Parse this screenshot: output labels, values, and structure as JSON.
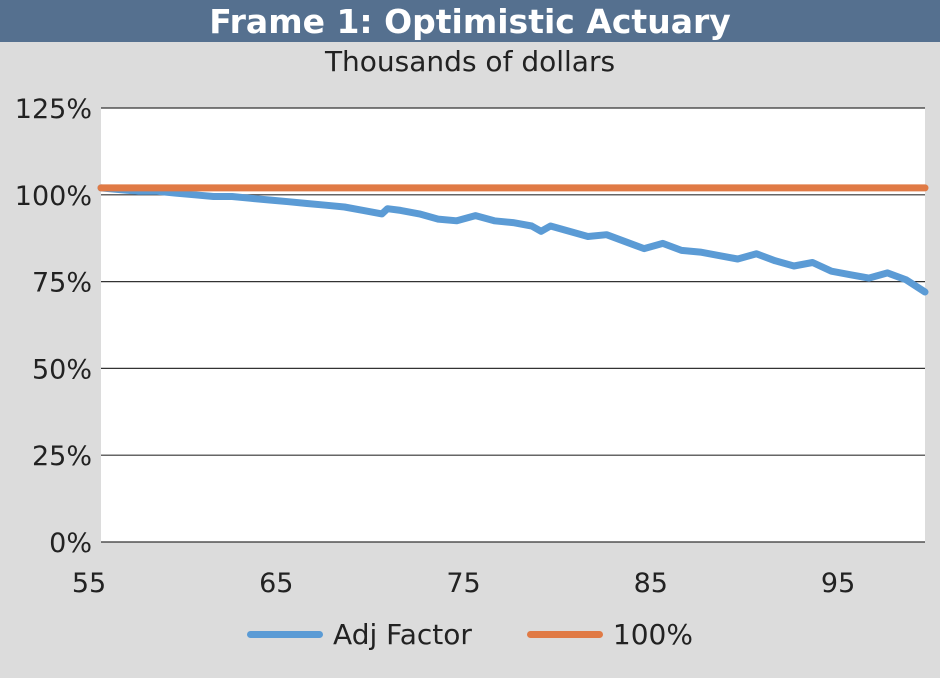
{
  "header": {
    "title": "Frame 1: Optimistic Actuary"
  },
  "chart_data": {
    "type": "line",
    "title": "Frame 1: Optimistic Actuary",
    "subtitle": "Thousands of dollars",
    "xlabel": "",
    "ylabel": "",
    "xlim": [
      55,
      99
    ],
    "ylim": [
      0,
      1.25
    ],
    "x_ticks": [
      55,
      65,
      75,
      85,
      95
    ],
    "x_tick_labels": [
      "55",
      "65",
      "75",
      "85",
      "95"
    ],
    "y_ticks": [
      0,
      0.25,
      0.5,
      0.75,
      1.0,
      1.25
    ],
    "y_tick_labels": [
      "0%",
      "25%",
      "50%",
      "75%",
      "100%",
      "125%"
    ],
    "grid": "horizontal",
    "legend_position": "bottom",
    "series": [
      {
        "name": "Adj Factor",
        "color": "#5b9bd5",
        "x": [
          55,
          56,
          57,
          58,
          59,
          60,
          61,
          62,
          63,
          64,
          65,
          66,
          67,
          68,
          69,
          70,
          70.3,
          71,
          72,
          73,
          74,
          75,
          76,
          77,
          78,
          78.5,
          79,
          80,
          81,
          82,
          83,
          84,
          85,
          86,
          87,
          88,
          89,
          90,
          91,
          92,
          93,
          94,
          95,
          96,
          97,
          98,
          99
        ],
        "values": [
          1.02,
          1.015,
          1.01,
          1.01,
          1.005,
          1.0,
          0.995,
          0.995,
          0.99,
          0.985,
          0.98,
          0.975,
          0.97,
          0.965,
          0.955,
          0.945,
          0.96,
          0.955,
          0.945,
          0.93,
          0.925,
          0.94,
          0.925,
          0.92,
          0.91,
          0.895,
          0.91,
          0.895,
          0.88,
          0.885,
          0.865,
          0.845,
          0.86,
          0.84,
          0.835,
          0.825,
          0.815,
          0.83,
          0.81,
          0.795,
          0.805,
          0.78,
          0.77,
          0.76,
          0.775,
          0.755,
          0.72
        ]
      },
      {
        "name": "100%",
        "color": "#e07a45",
        "x": [
          55,
          99
        ],
        "values": [
          1.02,
          1.02
        ]
      }
    ]
  }
}
